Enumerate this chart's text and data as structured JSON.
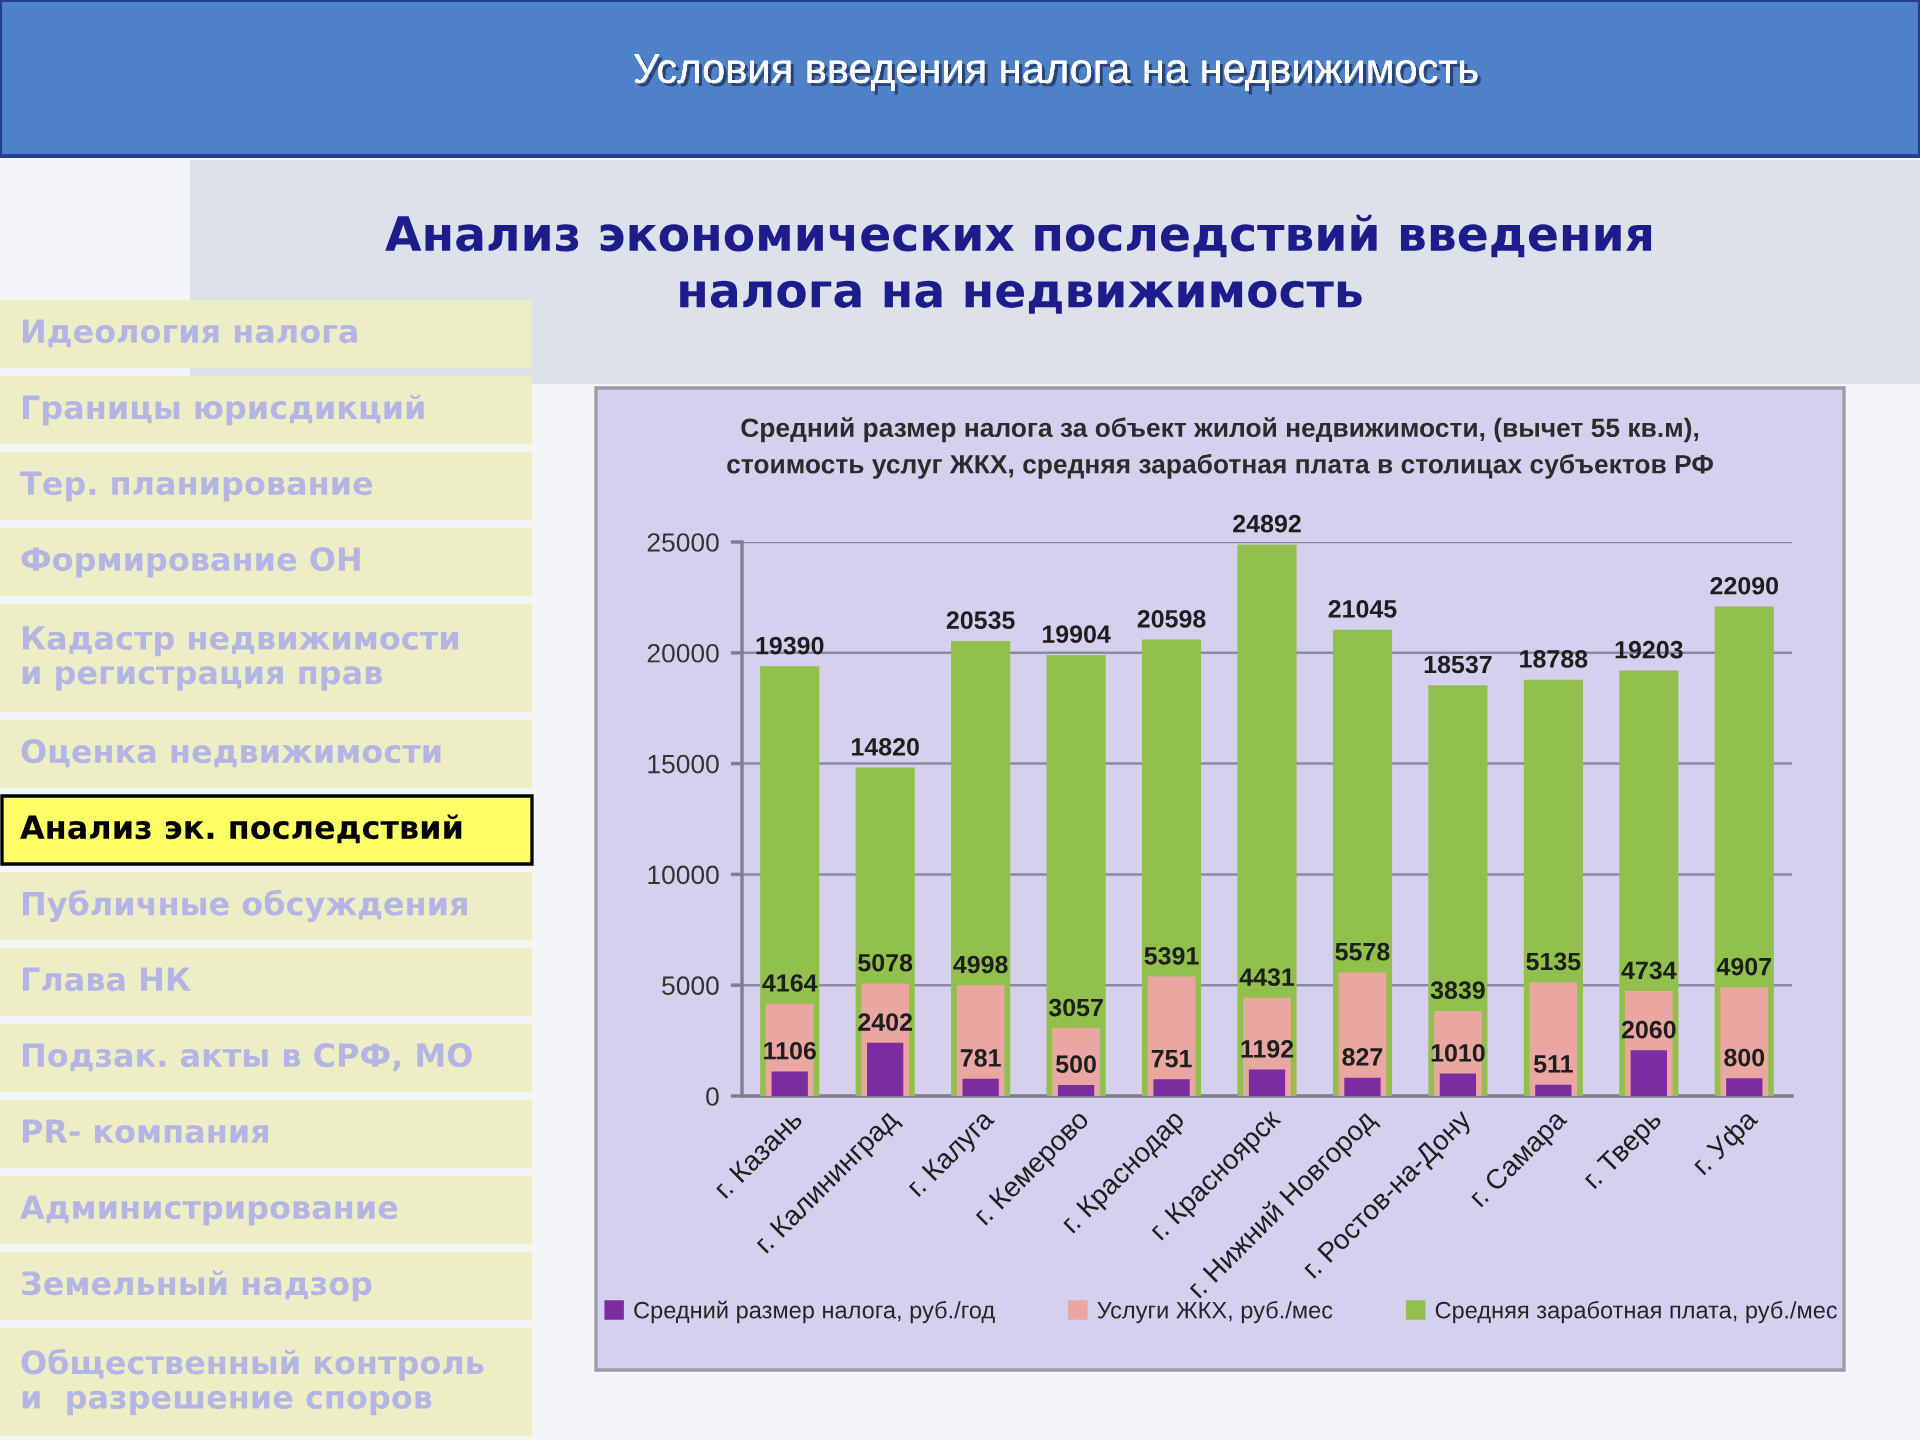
{
  "chart_data": {
    "type": "bar",
    "title": "Средний размер налога за объект жилой недвижимости, (вычет 55 кв.м),\nстоимость услуг ЖКХ, средняя заработная плата в столицах субъектов РФ",
    "categories": [
      "г. Казань",
      "г. Калининград",
      "г. Калуга",
      "г. Кемерово",
      "г. Краснодар",
      "г. Красноярск",
      "г. Нижний Новгород",
      "г. Ростов-на-Дону",
      "г. Самара",
      "г. Тверь",
      "г. Уфа"
    ],
    "series": [
      {
        "name": "Средний размер налога, руб./год",
        "color": "#7a2ca0",
        "values": [
          1106,
          2402,
          781,
          500,
          751,
          1192,
          827,
          1010,
          511,
          2060,
          800
        ]
      },
      {
        "name": "Услуги ЖКХ, руб./мес",
        "color": "#eaa6a0",
        "values": [
          4164,
          5078,
          4998,
          3057,
          5391,
          4431,
          5578,
          3839,
          5135,
          4734,
          4907
        ]
      },
      {
        "name": "Средняя заработная плата, руб./мес",
        "color": "#92c04c",
        "values": [
          19390,
          14820,
          20535,
          19904,
          20598,
          24892,
          21045,
          18537,
          18788,
          19203,
          22090
        ]
      }
    ],
    "ylim": [
      0,
      25000
    ],
    "yticks": [
      0,
      5000,
      10000,
      15000,
      20000,
      25000
    ],
    "grid": "y",
    "legend": "bottom",
    "data_labels": true,
    "annotations": [
      "Условия введения налога на недвижимость",
      "Анализ экономических последствий введения\nналога на недвижимость",
      "Идеология налога",
      "Границы юрисдикций",
      "Тер. планирование",
      "Формирование ОН",
      "Кадастр недвижимости\nи регистрация прав",
      "Оценка недвижимости",
      "Анализ эк. последствий",
      "Публичные обсуждения",
      "Глава НК",
      "Подзак. акты в СРФ, МО",
      "PR- компания",
      "Администрирование",
      "Земельный надзор",
      "Общественный контроль\nи  разрешение споров"
    ]
  }
}
